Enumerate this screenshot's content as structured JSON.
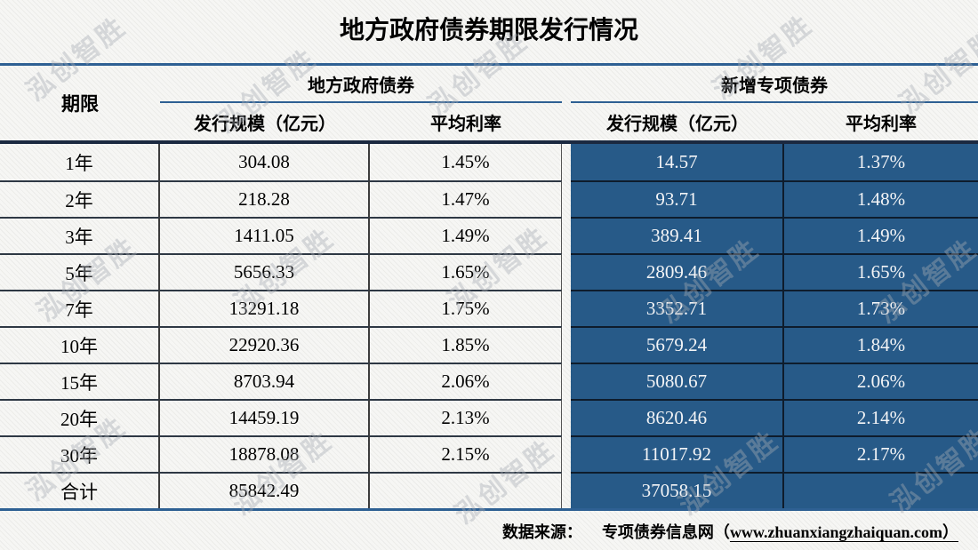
{
  "title": "地方政府债券期限发行情况",
  "watermark": {
    "text": "泓创智胜"
  },
  "table": {
    "term_header": "期限",
    "group_left": "地方政府债券",
    "group_right": "新增专项债券",
    "sub_scale": "发行规模（亿元）",
    "sub_rate": "平均利率"
  },
  "chart_data": {
    "type": "table",
    "title": "地方政府债券期限发行情况",
    "column_groups": [
      "期限",
      "地方政府债券",
      "新增专项债券"
    ],
    "columns": [
      "期限",
      "地方政府债券 发行规模（亿元）",
      "地方政府债券 平均利率",
      "新增专项债券 发行规模（亿元）",
      "新增专项债券 平均利率"
    ],
    "rows": [
      [
        "1年",
        "304.08",
        "1.45%",
        "14.57",
        "1.37%"
      ],
      [
        "2年",
        "218.28",
        "1.47%",
        "93.71",
        "1.48%"
      ],
      [
        "3年",
        "1411.05",
        "1.49%",
        "389.41",
        "1.49%"
      ],
      [
        "5年",
        "5656.33",
        "1.65%",
        "2809.46",
        "1.65%"
      ],
      [
        "7年",
        "13291.18",
        "1.75%",
        "3352.71",
        "1.73%"
      ],
      [
        "10年",
        "22920.36",
        "1.85%",
        "5679.24",
        "1.84%"
      ],
      [
        "15年",
        "8703.94",
        "2.06%",
        "5080.67",
        "2.06%"
      ],
      [
        "20年",
        "14459.19",
        "2.13%",
        "8620.46",
        "2.14%"
      ],
      [
        "30年",
        "18878.08",
        "2.15%",
        "11017.92",
        "2.17%"
      ],
      [
        "合计",
        "85842.49",
        "",
        "37058.15",
        ""
      ]
    ],
    "source": "数据来源： 专项债券信息网（www.zhuanxiangzhaiquan.com）"
  },
  "footer": {
    "source_label": "数据来源：",
    "source_name": "专项债券信息网（",
    "source_url": "www.zhuanxiangzhaiquan.com",
    "source_close": "）"
  },
  "colors": {
    "accent_blue": "#275a88",
    "rule_blue": "#2e6093",
    "header_thick_rule": "#1b2940"
  }
}
